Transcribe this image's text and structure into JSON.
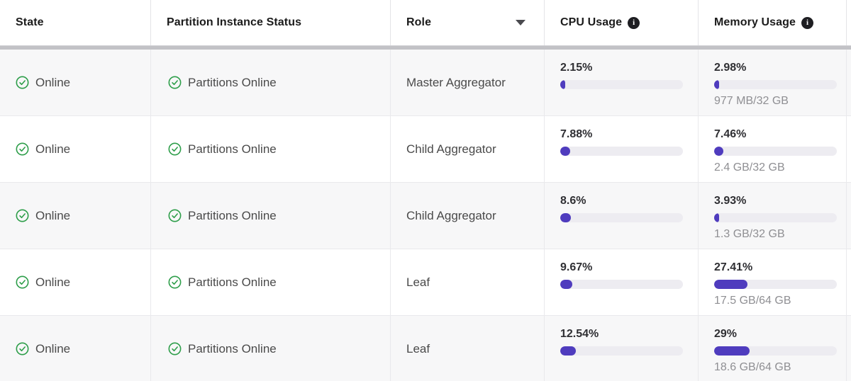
{
  "table": {
    "columns": [
      {
        "label": "State"
      },
      {
        "label": "Partition Instance Status"
      },
      {
        "label": "Role",
        "sortable": true,
        "sort_icon": "caret-down-icon"
      },
      {
        "label": "CPU Usage",
        "info_icon": "info-icon",
        "info_glyph": "i"
      },
      {
        "label": "Memory Usage",
        "info_icon": "info-icon",
        "info_glyph": "i"
      }
    ],
    "rows": [
      {
        "state": "Online",
        "state_icon": "check-circle-icon",
        "partition_status": "Partitions Online",
        "role": "Master Aggregator",
        "cpu": {
          "percent_label": "2.15%",
          "percent": 2.15
        },
        "memory": {
          "percent_label": "2.98%",
          "percent": 2.98,
          "detail": "977 MB/32 GB"
        }
      },
      {
        "state": "Online",
        "state_icon": "check-circle-icon",
        "partition_status": "Partitions Online",
        "role": "Child Aggregator",
        "cpu": {
          "percent_label": "7.88%",
          "percent": 7.88
        },
        "memory": {
          "percent_label": "7.46%",
          "percent": 7.46,
          "detail": "2.4 GB/32 GB"
        }
      },
      {
        "state": "Online",
        "state_icon": "check-circle-icon",
        "partition_status": "Partitions Online",
        "role": "Child Aggregator",
        "cpu": {
          "percent_label": "8.6%",
          "percent": 8.6
        },
        "memory": {
          "percent_label": "3.93%",
          "percent": 3.93,
          "detail": "1.3 GB/32 GB"
        }
      },
      {
        "state": "Online",
        "state_icon": "check-circle-icon",
        "partition_status": "Partitions Online",
        "role": "Leaf",
        "cpu": {
          "percent_label": "9.67%",
          "percent": 9.67
        },
        "memory": {
          "percent_label": "27.41%",
          "percent": 27.41,
          "detail": "17.5 GB/64 GB"
        }
      },
      {
        "state": "Online",
        "state_icon": "check-circle-icon",
        "partition_status": "Partitions Online",
        "role": "Leaf",
        "cpu": {
          "percent_label": "12.54%",
          "percent": 12.54
        },
        "memory": {
          "percent_label": "29%",
          "percent": 29,
          "detail": "18.6 GB/64 GB"
        }
      }
    ]
  },
  "colors": {
    "progress_fill": "#4f3cbe",
    "progress_track": "#edecf1",
    "status_green": "#2e9e4a",
    "row_stripe": "#f7f7f8",
    "border": "#e9e9ec",
    "header_text": "#1b1b1b",
    "body_text": "#4a4a4a",
    "subtext": "#8f8f93",
    "scrollbar": "#c2c2c6"
  }
}
